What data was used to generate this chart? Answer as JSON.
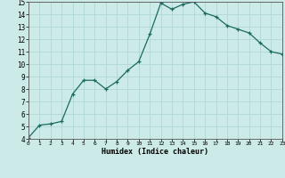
{
  "x": [
    0,
    1,
    2,
    3,
    4,
    5,
    6,
    7,
    8,
    9,
    10,
    11,
    12,
    13,
    14,
    15,
    16,
    17,
    18,
    19,
    20,
    21,
    22,
    23
  ],
  "y": [
    4.1,
    5.1,
    5.2,
    5.4,
    7.6,
    8.7,
    8.7,
    8.0,
    8.6,
    9.5,
    10.2,
    12.4,
    14.9,
    14.4,
    14.8,
    15.0,
    14.1,
    13.8,
    13.1,
    12.8,
    12.5,
    11.7,
    11.0,
    10.8
  ],
  "xlabel": "Humidex (Indice chaleur)",
  "bg_color": "#cceae7",
  "line_color": "#1a6b5e",
  "grid_color": "#b0d8d4",
  "xlim": [
    0,
    23
  ],
  "ylim": [
    4,
    15
  ],
  "yticks": [
    4,
    5,
    6,
    7,
    8,
    9,
    10,
    11,
    12,
    13,
    14,
    15
  ],
  "xticks": [
    0,
    1,
    2,
    3,
    4,
    5,
    6,
    7,
    8,
    9,
    10,
    11,
    12,
    13,
    14,
    15,
    16,
    17,
    18,
    19,
    20,
    21,
    22,
    23
  ]
}
